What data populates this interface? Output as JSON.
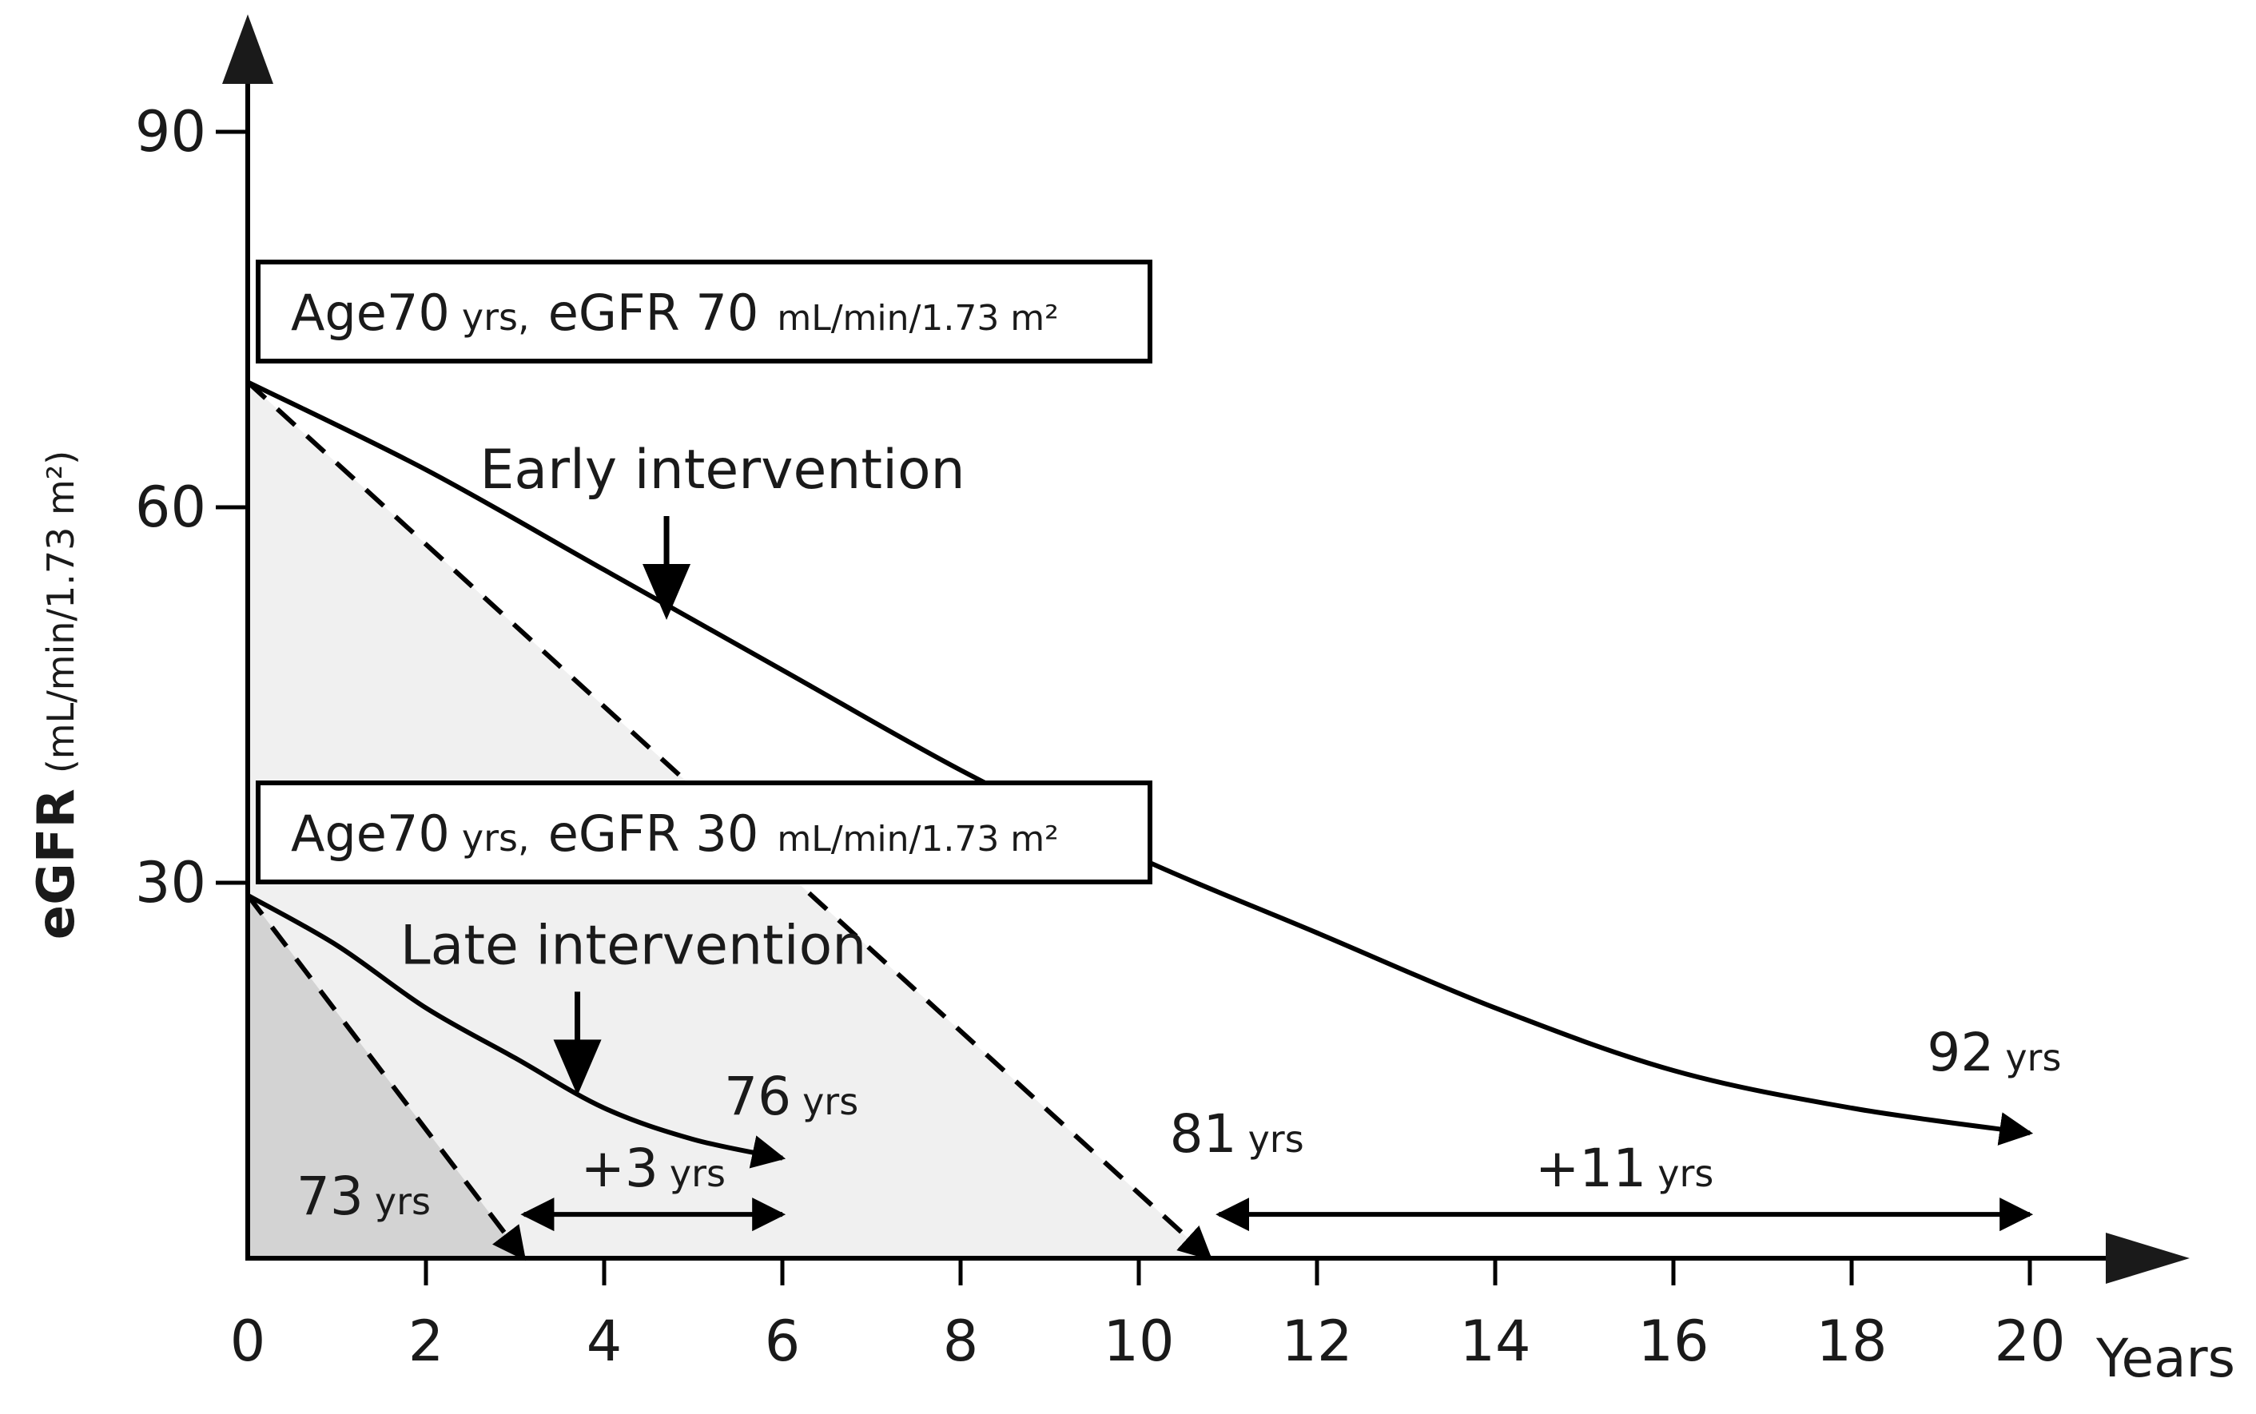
{
  "chart_data": {
    "type": "line",
    "title": "",
    "ylabel": {
      "main": "eGFR",
      "unit": "(mL/min/1.73 m²)"
    },
    "xlabel": "Years",
    "xlim": [
      0,
      20
    ],
    "ylim": [
      0,
      90
    ],
    "x_ticks": [
      "0",
      "2",
      "4",
      "6",
      "8",
      "10",
      "12",
      "14",
      "16",
      "18",
      "20"
    ],
    "y_ticks": [
      "30",
      "60",
      "90"
    ],
    "grid": false,
    "colors": {
      "line": "#000000",
      "light_fill": "#f0f0f0",
      "dark_fill": "#d3d3d3"
    },
    "scenario_boxes": [
      {
        "prefix": "Age70",
        "age_unit": "yrs,",
        "egfr_label": "eGFR 70",
        "egfr_unit": "mL/min/1.73 m²"
      },
      {
        "prefix": "Age70",
        "age_unit": "yrs,",
        "egfr_label": "eGFR 30",
        "egfr_unit": "mL/min/1.73 m²"
      }
    ],
    "series": [
      {
        "style": "solid",
        "points": [
          [
            0,
            70
          ],
          [
            2,
            63
          ],
          [
            4,
            55
          ],
          [
            6,
            47
          ],
          [
            8,
            39
          ],
          [
            10,
            32
          ],
          [
            12,
            26
          ],
          [
            14,
            20
          ],
          [
            16,
            15
          ],
          [
            18,
            12
          ],
          [
            20,
            10
          ]
        ]
      },
      {
        "style": "dashed",
        "points": [
          [
            0,
            70
          ],
          [
            10.8,
            0
          ]
        ]
      },
      {
        "style": "solid",
        "points": [
          [
            0,
            29
          ],
          [
            1,
            25
          ],
          [
            2,
            20
          ],
          [
            3,
            16
          ],
          [
            4,
            12
          ],
          [
            5,
            9.5
          ],
          [
            6,
            8
          ]
        ]
      },
      {
        "style": "dashed",
        "points": [
          [
            0,
            29
          ],
          [
            3.1,
            0
          ]
        ]
      }
    ],
    "regions": [
      {
        "shade": "light",
        "points": [
          [
            0,
            70
          ],
          [
            10.8,
            0
          ],
          [
            0,
            0
          ]
        ]
      },
      {
        "shade": "dark",
        "points": [
          [
            0,
            29
          ],
          [
            3.1,
            0
          ],
          [
            0,
            0
          ]
        ]
      }
    ],
    "annotations": [
      {
        "text": "Early intervention",
        "arrow_to": [
          4.7,
          51
        ]
      },
      {
        "text": "Late intervention",
        "arrow_to": [
          3.7,
          13
        ]
      }
    ],
    "age_labels": [
      {
        "num": "73",
        "unit": "yrs",
        "x": 1.3,
        "y": 3.5
      },
      {
        "num": "76",
        "unit": "yrs",
        "x": 6.1,
        "y": 11.5
      },
      {
        "num": "81",
        "unit": "yrs",
        "x": 11.1,
        "y": 8.5
      },
      {
        "num": "92",
        "unit": "yrs",
        "x": 19.6,
        "y": 15
      }
    ],
    "ranges": [
      {
        "from": 3.1,
        "to": 6.0,
        "y": 3.5,
        "label_num": "+3",
        "label_unit": "yrs"
      },
      {
        "from": 10.9,
        "to": 20.0,
        "y": 3.5,
        "label_num": "+11",
        "label_unit": "yrs"
      }
    ]
  }
}
